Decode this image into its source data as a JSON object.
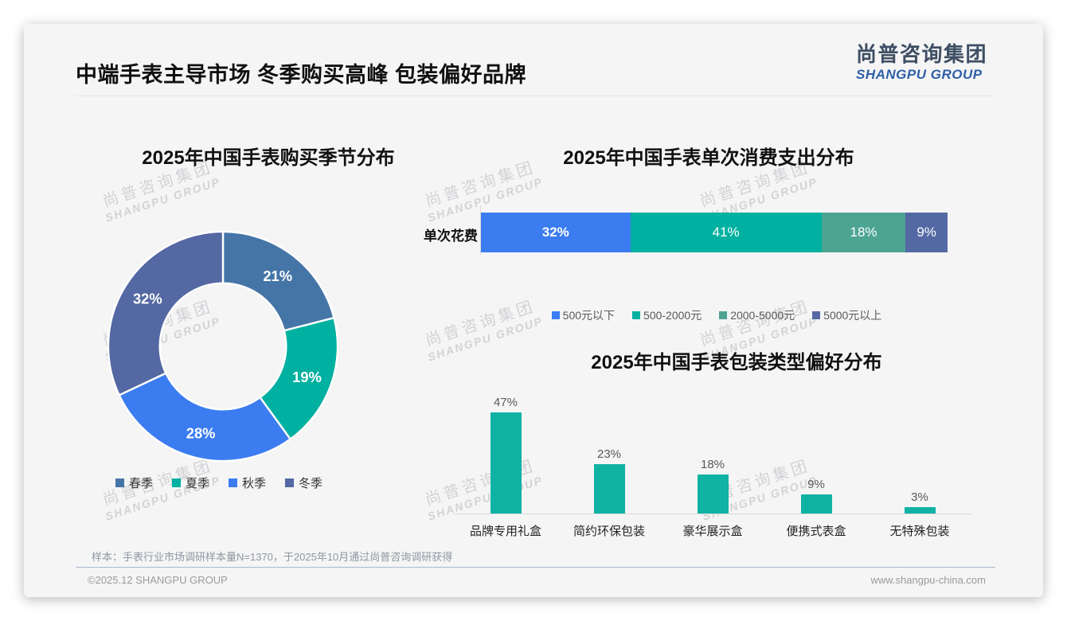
{
  "page": {
    "title": "中端手表主导市场 冬季购买高峰 包装偏好品牌",
    "logo": {
      "cn": "尚普咨询集团",
      "en": "SHANGPU GROUP"
    },
    "watermark": {
      "line1": "尚普咨询集团",
      "line2": "SHANGPU GROUP"
    },
    "footnote": "样本：手表行业市场调研样本量N=1370，于2025年10月通过尚普咨询调研获得",
    "footer_left": "©2025.12 SHANGPU GROUP",
    "footer_right": "www.shangpu-china.com"
  },
  "colors": {
    "steel_blue": "#4575a7",
    "teal": "#00b0a0",
    "bright_blue": "#3b7cf0",
    "slate_indigo": "#5468a3",
    "sea_green": "#4da492",
    "bar_teal": "#0fb2a3",
    "logo_blue": "#2e5fa7"
  },
  "chart_data": [
    {
      "type": "pie",
      "subtype": "donut",
      "title": "2025年中国手表购买季节分布",
      "categories": [
        "春季",
        "夏季",
        "秋季",
        "冬季"
      ],
      "values": [
        21,
        19,
        28,
        32
      ],
      "unit": "%",
      "colors": [
        "#4575a7",
        "#00b0a0",
        "#3b7cf0",
        "#5468a3"
      ],
      "start_angle": "top",
      "direction": "clockwise",
      "legend_position": "bottom"
    },
    {
      "type": "bar",
      "subtype": "horizontal-stacked",
      "title": "2025年中国手表单次消费支出分布",
      "row_label": "单次花费",
      "unit": "%",
      "series": [
        {
          "name": "500元以下",
          "value": 32,
          "color": "#3b7cf0"
        },
        {
          "name": "500-2000元",
          "value": 41,
          "color": "#00b0a0"
        },
        {
          "name": "2000-5000元",
          "value": 18,
          "color": "#4da492"
        },
        {
          "name": "5000元以上",
          "value": 9,
          "color": "#5468a3"
        }
      ],
      "legend_position": "bottom"
    },
    {
      "type": "bar",
      "subtype": "vertical",
      "title": "2025年中国手表包装类型偏好分布",
      "categories": [
        "品牌专用礼盒",
        "简约环保包装",
        "豪华展示盒",
        "便携式表盒",
        "无特殊包装"
      ],
      "values": [
        47,
        23,
        18,
        9,
        3
      ],
      "unit": "%",
      "bar_color": "#0fb2a3",
      "ylim": [
        0,
        50
      ],
      "grid": false
    }
  ]
}
